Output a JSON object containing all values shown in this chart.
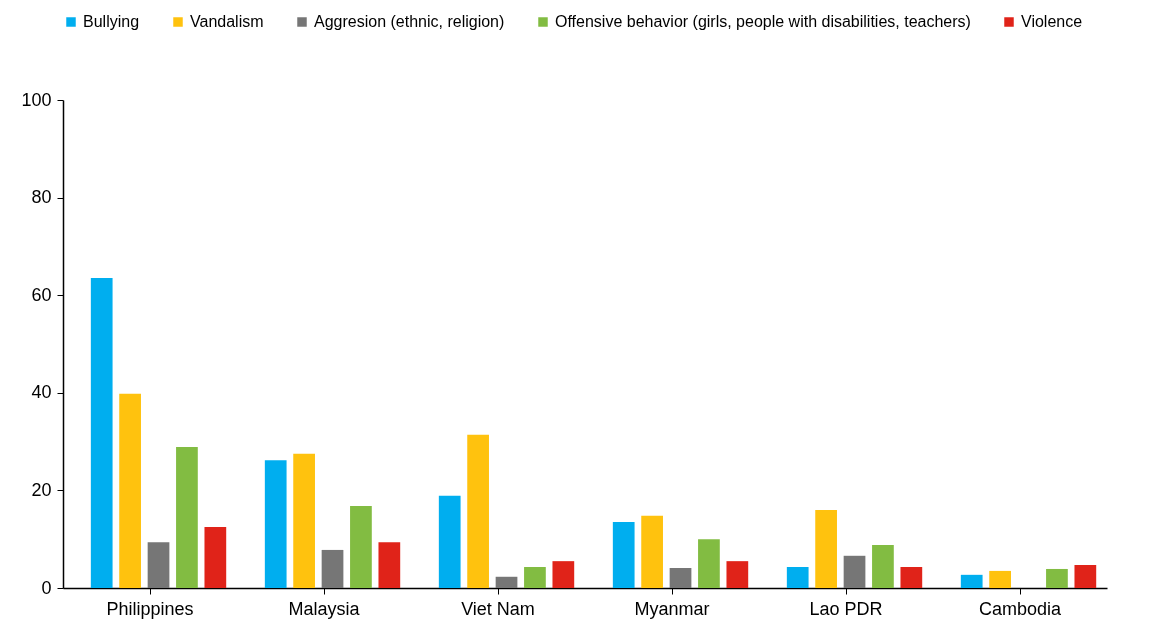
{
  "chart_data": {
    "type": "bar",
    "categories": [
      "Philippines",
      "Malaysia",
      "Viet Nam",
      "Myanmar",
      "Lao PDR",
      "Cambodia"
    ],
    "series": [
      {
        "name": "Bullying",
        "color": "#00aeef",
        "values": [
          63.5,
          26.2,
          18.9,
          13.5,
          4.3,
          2.7
        ]
      },
      {
        "name": "Vandalism",
        "color": "#ffc20e",
        "values": [
          39.8,
          27.5,
          31.4,
          14.8,
          16,
          3.5
        ]
      },
      {
        "name": "Aggresion (ethnic, religion)",
        "color": "#767676",
        "values": [
          9.4,
          7.8,
          2.3,
          4.1,
          6.6,
          null
        ]
      },
      {
        "name": "Offensive behavior (girls, people with disabilities, teachers)",
        "color": "#82bc42",
        "values": [
          28.9,
          16.8,
          4.3,
          10,
          8.8,
          3.9
        ]
      },
      {
        "name": "Violence",
        "color": "#e02319",
        "values": [
          12.5,
          9.4,
          5.5,
          5.5,
          4.3,
          4.7
        ]
      }
    ],
    "ylim": [
      0,
      100
    ],
    "yticks": [
      0,
      20,
      40,
      60,
      80,
      100
    ],
    "grid": false,
    "legend": "top"
  }
}
